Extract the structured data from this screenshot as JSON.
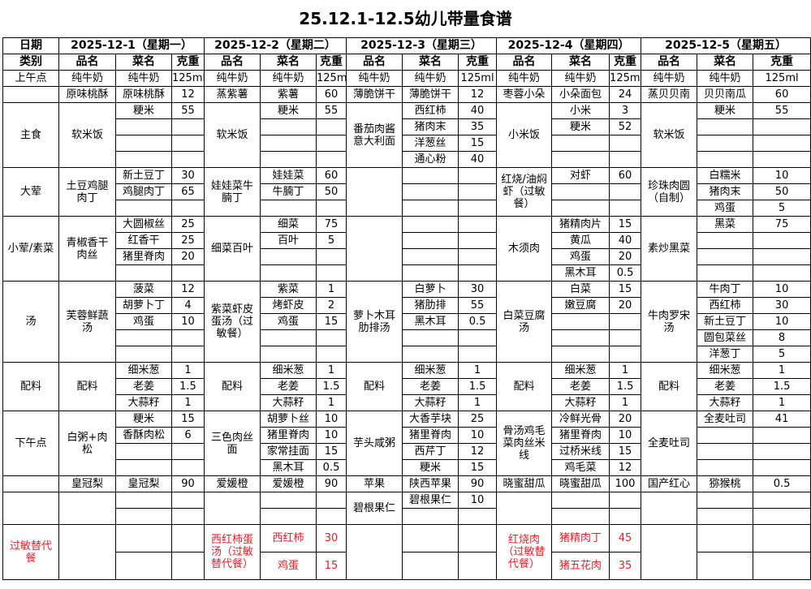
{
  "title": "25.12.1-12.5幼儿带量食谱",
  "header": {
    "date_label": "日期",
    "category_label": "类别",
    "dates": [
      "2025-12-1（星期一）",
      "2025-12-2（星期二）",
      "2025-12-3（星期三）",
      "2025-12-4（星期四）",
      "2025-12-5（星期五）"
    ],
    "col_labels": [
      "品名",
      "菜名",
      "克重"
    ]
  },
  "accent_red": "#e0202a",
  "sections": [
    {
      "category": "上午点",
      "rows": 1,
      "days": [
        {
          "dish": "纯牛奶",
          "items": [
            [
              "纯牛奶",
              "125ml"
            ]
          ]
        },
        {
          "dish": "纯牛奶",
          "items": [
            [
              "纯牛奶",
              "125ml"
            ]
          ]
        },
        {
          "dish": "纯牛奶",
          "items": [
            [
              "纯牛奶",
              "125ml"
            ]
          ]
        },
        {
          "dish": "纯牛奶",
          "items": [
            [
              "纯牛奶",
              "125ml"
            ]
          ]
        },
        {
          "dish": "纯牛奶",
          "items": [
            [
              "纯牛奶",
              "125ml"
            ]
          ]
        }
      ]
    },
    {
      "category": "",
      "rows": 1,
      "days": [
        {
          "dish": "原味桃酥",
          "items": [
            [
              "原味桃酥",
              "12"
            ]
          ]
        },
        {
          "dish": "蒸紫薯",
          "items": [
            [
              "紫薯",
              "60"
            ]
          ]
        },
        {
          "dish": "薄脆饼干",
          "items": [
            [
              "薄脆饼干",
              "12"
            ]
          ]
        },
        {
          "dish": "枣蓉小朵",
          "items": [
            [
              "小朵面包",
              "24"
            ]
          ]
        },
        {
          "dish": "蒸贝贝南",
          "items": [
            [
              "贝贝南瓜",
              "60"
            ]
          ]
        }
      ]
    },
    {
      "category": "主食",
      "rows": 4,
      "days": [
        {
          "dish": "软米饭",
          "items": [
            [
              "粳米",
              "55"
            ]
          ]
        },
        {
          "dish": "软米饭",
          "items": [
            [
              "粳米",
              "55"
            ]
          ]
        },
        {
          "dish": "番茄肉酱意大利面",
          "items": [
            [
              "西红柿",
              "40"
            ],
            [
              "猪肉末",
              "35"
            ],
            [
              "洋葱丝",
              "15"
            ],
            [
              "通心粉",
              "40"
            ]
          ]
        },
        {
          "dish": "小米饭",
          "items": [
            [
              "小米",
              "3"
            ],
            [
              "粳米",
              "52"
            ]
          ]
        },
        {
          "dish": "软米饭",
          "items": [
            [
              "粳米",
              "55"
            ]
          ]
        }
      ]
    },
    {
      "category": "大荤",
      "rows": 3,
      "days": [
        {
          "dish": "土豆鸡腿肉丁",
          "items": [
            [
              "新土豆丁",
              "30"
            ],
            [
              "鸡腿肉丁",
              "65"
            ]
          ]
        },
        {
          "dish": "娃娃菜牛腩丁",
          "items": [
            [
              "娃娃菜",
              "60"
            ],
            [
              "牛腩丁",
              "50"
            ]
          ]
        },
        {
          "dish": "",
          "items": []
        },
        {
          "dish": "红烧/油焖虾（过敏餐）",
          "items": [
            [
              "对虾",
              "60"
            ]
          ]
        },
        {
          "dish": "珍珠肉圆（自制）",
          "items": [
            [
              "白糯米",
              "10"
            ],
            [
              "猪肉末",
              "50"
            ],
            [
              "鸡蛋",
              "5"
            ]
          ]
        }
      ]
    },
    {
      "category": "小荤/素菜",
      "rows": 4,
      "days": [
        {
          "dish": "青椒香干肉丝",
          "items": [
            [
              "大圆椒丝",
              "25"
            ],
            [
              "红香干",
              "25"
            ],
            [
              "猪里脊肉",
              "20"
            ]
          ]
        },
        {
          "dish": "细菜百叶",
          "items": [
            [
              "细菜",
              "75"
            ],
            [
              "百叶",
              "5"
            ]
          ]
        },
        {
          "dish": "",
          "items": []
        },
        {
          "dish": "木须肉",
          "items": [
            [
              "猪精肉片",
              "15"
            ],
            [
              "黄瓜",
              "40"
            ],
            [
              "鸡蛋",
              "20"
            ],
            [
              "黑木耳",
              "0.5"
            ]
          ]
        },
        {
          "dish": "素炒黑菜",
          "items": [
            [
              "黑菜",
              "75"
            ]
          ]
        }
      ]
    },
    {
      "category": "汤",
      "rows": 5,
      "days": [
        {
          "dish": "芙蓉鲜蔬汤",
          "items": [
            [
              "菠菜",
              "12"
            ],
            [
              "胡萝卜丁",
              "4"
            ],
            [
              "鸡蛋",
              "10"
            ]
          ]
        },
        {
          "dish": "紫菜虾皮蛋汤（过敏餐）",
          "items": [
            [
              "紫菜",
              "1"
            ],
            [
              "烤虾皮",
              "2"
            ],
            [
              "鸡蛋",
              "15"
            ]
          ]
        },
        {
          "dish": "萝卜木耳肋排汤",
          "items": [
            [
              "白萝卜",
              "30"
            ],
            [
              "猪肋排",
              "55"
            ],
            [
              "黑木耳",
              "0.5"
            ]
          ]
        },
        {
          "dish": "白菜豆腐汤",
          "items": [
            [
              "白菜",
              "15"
            ],
            [
              "嫩豆腐",
              "20"
            ]
          ]
        },
        {
          "dish": "牛肉罗宋汤",
          "items": [
            [
              "牛肉丁",
              "10"
            ],
            [
              "西红柿",
              "30"
            ],
            [
              "新土豆丁",
              "10"
            ],
            [
              "圆包菜丝",
              "8"
            ],
            [
              "洋葱丁",
              "5"
            ]
          ]
        }
      ]
    },
    {
      "category": "配料",
      "rows": 3,
      "days": [
        {
          "dish": "配料",
          "items": [
            [
              "细米葱",
              "1"
            ],
            [
              "老姜",
              "1.5"
            ],
            [
              "大蒜籽",
              "1"
            ]
          ]
        },
        {
          "dish": "配料",
          "items": [
            [
              "细米葱",
              "1"
            ],
            [
              "老姜",
              "1.5"
            ],
            [
              "大蒜籽",
              "1"
            ]
          ]
        },
        {
          "dish": "配料",
          "items": [
            [
              "细米葱",
              "1"
            ],
            [
              "老姜",
              "1.5"
            ],
            [
              "大蒜籽",
              "1"
            ]
          ]
        },
        {
          "dish": "配料",
          "items": [
            [
              "细米葱",
              "1"
            ],
            [
              "老姜",
              "1.5"
            ],
            [
              "大蒜籽",
              "1"
            ]
          ]
        },
        {
          "dish": "配料",
          "items": [
            [
              "细米葱",
              "1"
            ],
            [
              "老姜",
              "1.5"
            ],
            [
              "大蒜籽",
              "1"
            ]
          ]
        }
      ]
    },
    {
      "category": "下午点",
      "rows": 4,
      "days": [
        {
          "dish": "白粥+肉松",
          "items": [
            [
              "粳米",
              "15"
            ],
            [
              "香酥肉松",
              "6"
            ]
          ]
        },
        {
          "dish": "三色肉丝面",
          "items": [
            [
              "胡萝卜丝",
              "10"
            ],
            [
              "猪里脊肉",
              "10"
            ],
            [
              "家常挂面",
              "15"
            ],
            [
              "黑木耳",
              "0.5"
            ]
          ]
        },
        {
          "dish": "芋头咸粥",
          "items": [
            [
              "大香芋块",
              "25"
            ],
            [
              "猪里脊肉",
              "10"
            ],
            [
              "西芹丁",
              "12"
            ],
            [
              "粳米",
              "15"
            ]
          ]
        },
        {
          "dish": "骨汤鸡毛菜肉丝米线",
          "items": [
            [
              "冷鲜光骨",
              "20"
            ],
            [
              "猪里脊肉",
              "10"
            ],
            [
              "过桥米线",
              "15"
            ],
            [
              "鸡毛菜",
              "12"
            ]
          ]
        },
        {
          "dish": "全麦吐司",
          "items": [
            [
              "全麦吐司",
              "41"
            ]
          ]
        }
      ]
    },
    {
      "category": "",
      "rows": 1,
      "days": [
        {
          "dish": "皇冠梨",
          "items": [
            [
              "皇冠梨",
              "90"
            ]
          ]
        },
        {
          "dish": "爱媛橙",
          "items": [
            [
              "爱媛橙",
              "90"
            ]
          ]
        },
        {
          "dish": "苹果",
          "items": [
            [
              "陕西苹果",
              "90"
            ]
          ]
        },
        {
          "dish": "晓蜜甜瓜",
          "items": [
            [
              "晓蜜甜瓜",
              "100"
            ]
          ]
        },
        {
          "dish": "国产红心",
          "items": [
            [
              "猕猴桃",
              "0.5"
            ]
          ]
        }
      ]
    },
    {
      "category": "",
      "rows": 2,
      "days": [
        {
          "dish": "",
          "items": []
        },
        {
          "dish": "",
          "items": []
        },
        {
          "dish": "碧根果仁",
          "items": [
            [
              "碧根果仁",
              "10"
            ]
          ]
        },
        {
          "dish": "",
          "items": []
        },
        {
          "dish": "",
          "items": []
        }
      ]
    },
    {
      "category": "过敏替代餐",
      "rows": 2,
      "allergy": true,
      "days": [
        {
          "dish": "",
          "items": []
        },
        {
          "dish": "西红柿蛋汤（过敏替代餐）",
          "items": [
            [
              "西红柿",
              "30"
            ],
            [
              "鸡蛋",
              "15"
            ]
          ]
        },
        {
          "dish": "",
          "items": []
        },
        {
          "dish": "红烧肉（过敏替代餐）",
          "items": [
            [
              "猪精肉丁",
              "45"
            ],
            [
              "猪五花肉",
              "35"
            ]
          ]
        },
        {
          "dish": "",
          "items": []
        }
      ]
    }
  ]
}
